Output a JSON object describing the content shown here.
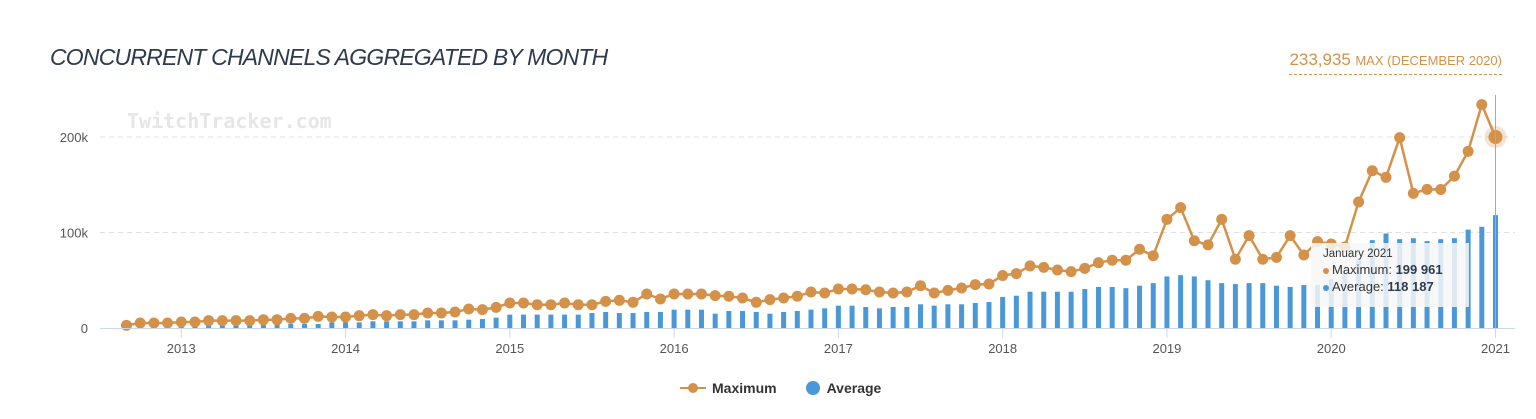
{
  "header": {
    "title": "CONCURRENT CHANNELS AGGREGATED BY MONTH",
    "max_value": "233,935",
    "max_text": "MAX (DECEMBER 2020)"
  },
  "watermark": "TwitchTracker.com",
  "tooltip": {
    "date": "January 2021",
    "max_label": "Maximum: ",
    "max_value": "199 961",
    "avg_label": "Average: ",
    "avg_value": "118 187"
  },
  "colors": {
    "maximum": "#d4914a",
    "average": "#4a98d8",
    "title": "#2e3a4d"
  },
  "chart_data": {
    "type": "line+bar",
    "title": "CONCURRENT CHANNELS AGGREGATED BY MONTH",
    "xlabel": "",
    "ylabel": "",
    "ylim": [
      0,
      240000
    ],
    "yticks": [
      {
        "v": 0,
        "label": "0"
      },
      {
        "v": 100000,
        "label": "100k"
      },
      {
        "v": 200000,
        "label": "200k"
      }
    ],
    "xticks": [
      "2013",
      "2014",
      "2015",
      "2016",
      "2017",
      "2018",
      "2019",
      "2020",
      "2021"
    ],
    "grid": true,
    "legend": "bottom",
    "x": [
      "2012-09",
      "2012-10",
      "2012-11",
      "2012-12",
      "2013-01",
      "2013-02",
      "2013-03",
      "2013-04",
      "2013-05",
      "2013-06",
      "2013-07",
      "2013-08",
      "2013-09",
      "2013-10",
      "2013-11",
      "2013-12",
      "2014-01",
      "2014-02",
      "2014-03",
      "2014-04",
      "2014-05",
      "2014-06",
      "2014-07",
      "2014-08",
      "2014-09",
      "2014-10",
      "2014-11",
      "2014-12",
      "2015-01",
      "2015-02",
      "2015-03",
      "2015-04",
      "2015-05",
      "2015-06",
      "2015-07",
      "2015-08",
      "2015-09",
      "2015-10",
      "2015-11",
      "2015-12",
      "2016-01",
      "2016-02",
      "2016-03",
      "2016-04",
      "2016-05",
      "2016-06",
      "2016-07",
      "2016-08",
      "2016-09",
      "2016-10",
      "2016-11",
      "2016-12",
      "2017-01",
      "2017-02",
      "2017-03",
      "2017-04",
      "2017-05",
      "2017-06",
      "2017-07",
      "2017-08",
      "2017-09",
      "2017-10",
      "2017-11",
      "2017-12",
      "2018-01",
      "2018-02",
      "2018-03",
      "2018-04",
      "2018-05",
      "2018-06",
      "2018-07",
      "2018-08",
      "2018-09",
      "2018-10",
      "2018-11",
      "2018-12",
      "2019-01",
      "2019-02",
      "2019-03",
      "2019-04",
      "2019-05",
      "2019-06",
      "2019-07",
      "2019-08",
      "2019-09",
      "2019-10",
      "2019-11",
      "2019-12",
      "2020-01",
      "2020-02",
      "2020-03",
      "2020-04",
      "2020-05",
      "2020-06",
      "2020-07",
      "2020-08",
      "2020-09",
      "2020-10",
      "2020-11",
      "2020-12",
      "2021-01"
    ],
    "series": [
      {
        "name": "Maximum",
        "type": "line",
        "values": [
          2800,
          5200,
          5200,
          5200,
          6300,
          6300,
          7700,
          7700,
          7700,
          7700,
          8700,
          8700,
          10100,
          10100,
          12200,
          11500,
          11500,
          12900,
          14000,
          12900,
          14000,
          14000,
          15700,
          15700,
          16800,
          19900,
          19200,
          21600,
          26200,
          26200,
          24400,
          24400,
          26200,
          24400,
          24400,
          27900,
          29000,
          26900,
          35600,
          30400,
          35600,
          35600,
          35600,
          33900,
          33200,
          31400,
          26900,
          29700,
          31400,
          33200,
          37700,
          36600,
          40800,
          40800,
          40100,
          37700,
          36600,
          37700,
          44300,
          36600,
          39400,
          41900,
          45400,
          46100,
          55000,
          57000,
          65000,
          63500,
          60700,
          59000,
          62500,
          68400,
          71000,
          71000,
          82400,
          75700,
          113800,
          126000,
          91400,
          87000,
          113800,
          72000,
          96700,
          72000,
          74000,
          96700,
          76400,
          90400,
          88000,
          85000,
          132000,
          164700,
          157800,
          199300,
          141000,
          145200,
          145000,
          159000,
          185000,
          233935,
          199961
        ]
      },
      {
        "name": "Average",
        "type": "bar",
        "values": [
          1000,
          1700,
          1700,
          1700,
          1700,
          2800,
          2800,
          2800,
          2800,
          2800,
          4200,
          4200,
          4200,
          4200,
          4200,
          5900,
          5900,
          5900,
          7000,
          7000,
          7000,
          7000,
          8000,
          8000,
          8000,
          8700,
          9400,
          10800,
          14000,
          14000,
          14000,
          14000,
          14000,
          14000,
          15700,
          16800,
          15700,
          15700,
          16800,
          16800,
          19200,
          19200,
          19200,
          15000,
          17800,
          17800,
          16800,
          15000,
          16800,
          17800,
          19200,
          20600,
          23400,
          23400,
          22000,
          20600,
          22000,
          22000,
          24800,
          23400,
          24800,
          24800,
          26200,
          27200,
          32500,
          33800,
          38000,
          38000,
          38000,
          38000,
          40800,
          43000,
          43000,
          41700,
          44300,
          47000,
          54000,
          55300,
          54000,
          50000,
          47000,
          46000,
          47000,
          47000,
          44300,
          43000,
          45000,
          45000,
          51000,
          58000,
          72000,
          92000,
          99000,
          93000,
          94000,
          91000,
          93000,
          94000,
          103000,
          106000,
          118187
        ]
      }
    ]
  }
}
